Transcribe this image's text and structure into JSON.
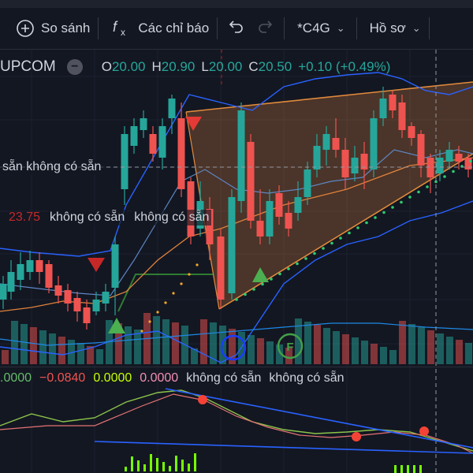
{
  "toolbar": {
    "compare_label": "So sánh",
    "indicators_label": "Các chỉ báo",
    "interval_label": "*C4G",
    "profile_label": "Hồ sơ"
  },
  "legend": {
    "symbol": "UPCOM",
    "o_label": "O",
    "o_value": "20.00",
    "h_label": "H",
    "h_value": "20.90",
    "l_label": "L",
    "l_value": "20.00",
    "c_label": "C",
    "c_value": "20.50",
    "change": "+0.10 (+0.49%)"
  },
  "indicators": {
    "row1_text": "sẵn không có sẵn",
    "row2_value": "23.75",
    "row2_text1": "không có sẵn",
    "row2_text2": "không có sẵn"
  },
  "oscillator": {
    "v1": ".0000",
    "v2": "−0.0840",
    "v3": "0.0000",
    "v4": "0.0000",
    "t1": "không có sẵn",
    "t2": "không có sẵn"
  },
  "markers": {
    "f_label": "F"
  },
  "colors": {
    "background": "#131722",
    "up": "#26a69a",
    "down": "#ef5350",
    "band": "#2962ff",
    "mid": "#e0823c",
    "dots": "#2ecc71"
  }
}
